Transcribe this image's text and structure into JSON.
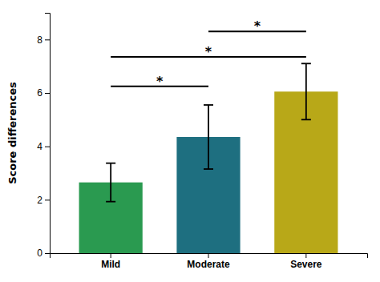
{
  "chart_data": {
    "type": "bar",
    "categories": [
      "Mild",
      "Moderate",
      "Severe"
    ],
    "values": [
      2.65,
      4.35,
      6.05
    ],
    "errors": [
      0.72,
      1.2,
      1.05
    ],
    "colors": [
      "#2a9a50",
      "#1e6f80",
      "#b8a818"
    ],
    "ylabel": "Score differences",
    "ylim": [
      0,
      9.0
    ],
    "yticks": [
      0,
      2,
      4,
      6,
      8
    ],
    "grid": false,
    "annotations": [
      {
        "from": "Mild",
        "to": "Moderate",
        "y": 6.25,
        "text": "*"
      },
      {
        "from": "Mild",
        "to": "Severe",
        "y": 7.35,
        "text": "*"
      },
      {
        "from": "Moderate",
        "to": "Severe",
        "y": 8.3,
        "text": "*"
      }
    ]
  }
}
